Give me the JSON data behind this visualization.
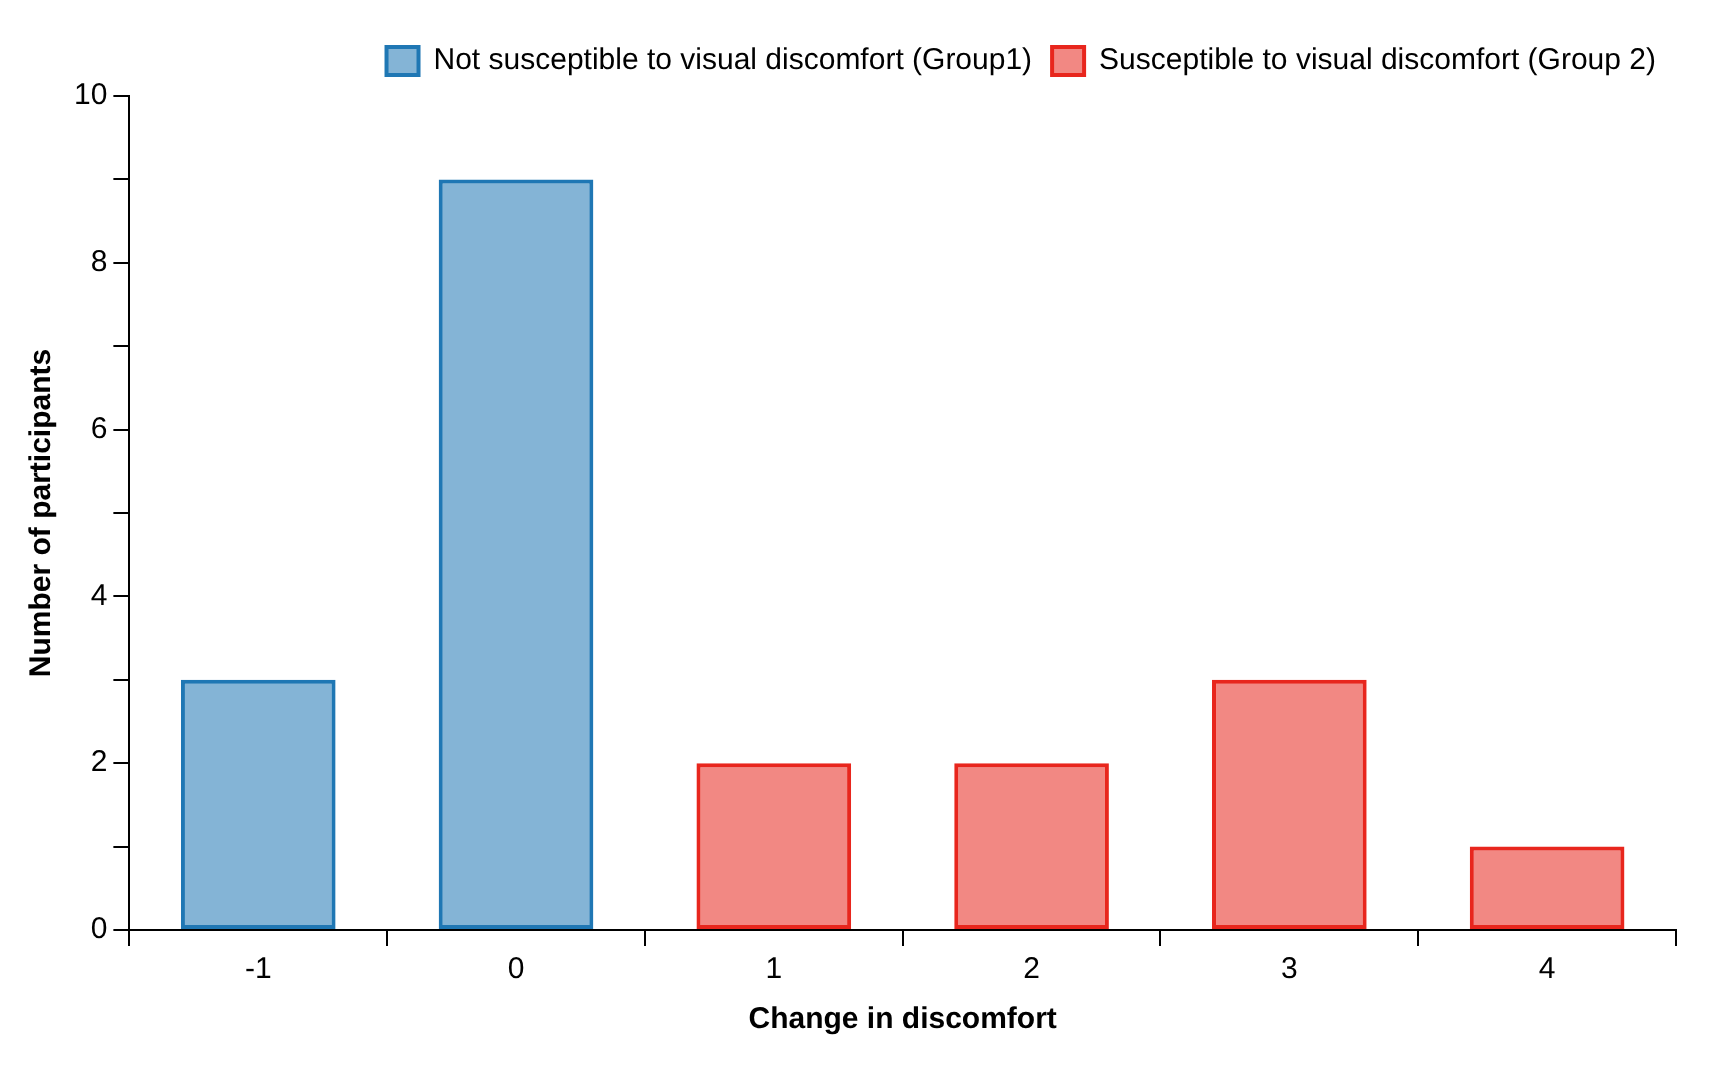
{
  "chart_data": {
    "type": "bar",
    "xlabel": "Change in discomfort",
    "ylabel": "Number of participants",
    "categories": [
      "-1",
      "0",
      "1",
      "2",
      "3",
      "4"
    ],
    "series": [
      {
        "name": "Not susceptible to visual discomfort (Group1)",
        "color": "#1f77b4",
        "values": [
          3,
          9,
          null,
          null,
          null,
          null
        ]
      },
      {
        "name": "Susceptible to visual discomfort (Group 2)",
        "color": "#e8261d",
        "values": [
          null,
          null,
          2,
          2,
          3,
          1
        ]
      }
    ],
    "ylim": [
      0,
      10
    ],
    "yticks": [
      0,
      {
        "value": 1,
        "label": null
      },
      2,
      {
        "value": 3,
        "label": null
      },
      4,
      {
        "value": 5,
        "label": null
      },
      6,
      {
        "value": 7,
        "label": null
      },
      8,
      {
        "value": 9,
        "label": null
      },
      10
    ],
    "grid": false,
    "legend": "top right"
  }
}
